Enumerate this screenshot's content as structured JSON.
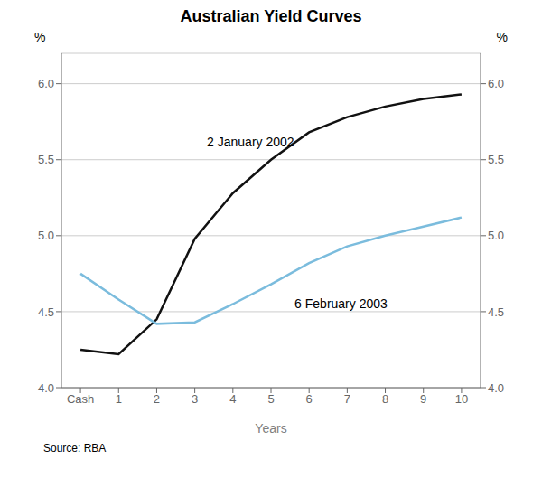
{
  "chart_data": {
    "type": "line",
    "title": "Australian Yield Curves",
    "xlabel": "Years",
    "ylabel": "%",
    "y2label": "%",
    "source": "Source: RBA",
    "x": [
      0,
      1,
      2,
      3,
      4,
      5,
      6,
      7,
      8,
      9,
      10
    ],
    "xlim": [
      -0.5,
      10.5
    ],
    "xticks": [
      {
        "value": 0,
        "label": "Cash"
      },
      1,
      2,
      3,
      4,
      5,
      6,
      7,
      8,
      9,
      10
    ],
    "ylim": [
      4.0,
      6.2
    ],
    "yticks": [
      {
        "value": 4.0,
        "label": "4.0"
      },
      4.5,
      {
        "value": 5.0,
        "label": "5.0"
      },
      5.5,
      {
        "value": 6.0,
        "label": "6.0"
      }
    ],
    "y2lim": [
      4.0,
      6.2
    ],
    "y2ticks": [
      {
        "value": 4.0,
        "label": "4.0"
      },
      4.5,
      {
        "value": 5.0,
        "label": "5.0"
      },
      5.5,
      {
        "value": 6.0,
        "label": "6.0"
      }
    ],
    "grid": true,
    "series": [
      {
        "name": "2 January 2002",
        "color": "#111111",
        "values": [
          4.25,
          4.22,
          4.45,
          4.98,
          5.28,
          5.5,
          5.68,
          5.78,
          5.85,
          5.9,
          5.93
        ]
      },
      {
        "name": "6 February 2003",
        "color": "#7bbcdd",
        "values": [
          4.75,
          4.58,
          4.42,
          4.43,
          4.55,
          4.68,
          4.82,
          4.93,
          5.0,
          5.06,
          5.12
        ]
      }
    ],
    "annotations": [
      {
        "text": "2 January 2002",
        "x": 3.2,
        "y": 5.62
      },
      {
        "text": "6 February 2003",
        "x": 5.5,
        "y": 4.55
      }
    ]
  }
}
